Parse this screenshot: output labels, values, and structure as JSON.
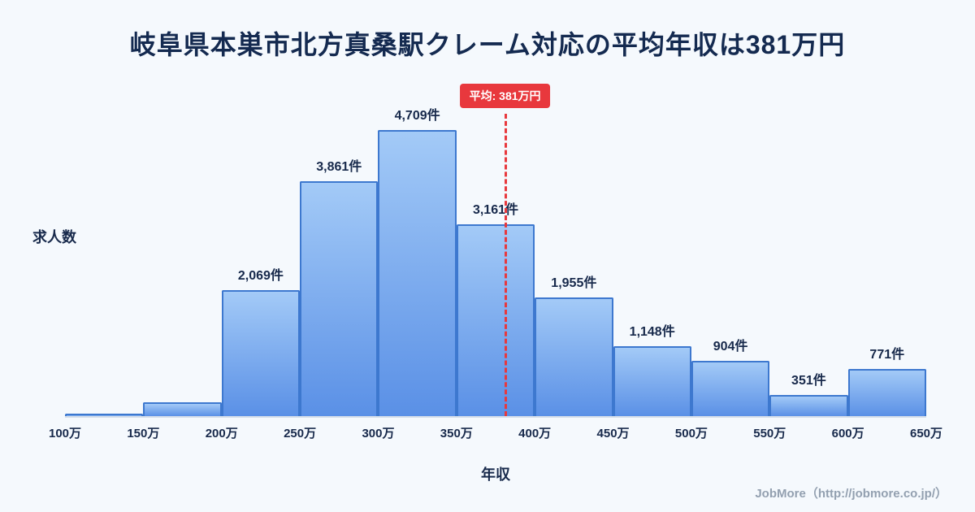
{
  "page": {
    "footer": "JobMore（http://jobmore.co.jp/）"
  },
  "chart_data": {
    "type": "bar",
    "title": "岐阜県本巣市北方真桑駅クレーム対応の平均年収は381万円",
    "xlabel": "年収",
    "ylabel": "求人数",
    "x_range": [
      100,
      650
    ],
    "x_ticks": [
      "100万",
      "150万",
      "200万",
      "250万",
      "300万",
      "350万",
      "400万",
      "450万",
      "500万",
      "550万",
      "600万",
      "650万"
    ],
    "bins": [
      {
        "range": "100万-150万",
        "value": 40,
        "label": ""
      },
      {
        "range": "150万-200万",
        "value": 230,
        "label": ""
      },
      {
        "range": "200万-250万",
        "value": 2069,
        "label": "2,069件"
      },
      {
        "range": "250万-300万",
        "value": 3861,
        "label": "3,861件"
      },
      {
        "range": "300万-350万",
        "value": 4709,
        "label": "4,709件"
      },
      {
        "range": "350万-400万",
        "value": 3161,
        "label": "3,161件"
      },
      {
        "range": "400万-450万",
        "value": 1955,
        "label": "1,955件"
      },
      {
        "range": "450万-500万",
        "value": 1148,
        "label": "1,148件"
      },
      {
        "range": "500万-550万",
        "value": 904,
        "label": "904件"
      },
      {
        "range": "550万-600万",
        "value": 351,
        "label": "351件"
      },
      {
        "range": "600万-650万",
        "value": 771,
        "label": "771件"
      }
    ],
    "average": {
      "value": 381,
      "label": "平均: 381万円"
    },
    "legend": [],
    "grid": false,
    "colors": {
      "background": "#f5f9fd",
      "bar_top": "#a3caf7",
      "bar_bottom": "#5a90e6",
      "bar_border": "#3d78cf",
      "average_line": "#e8383d",
      "title_text": "#142a50"
    }
  }
}
